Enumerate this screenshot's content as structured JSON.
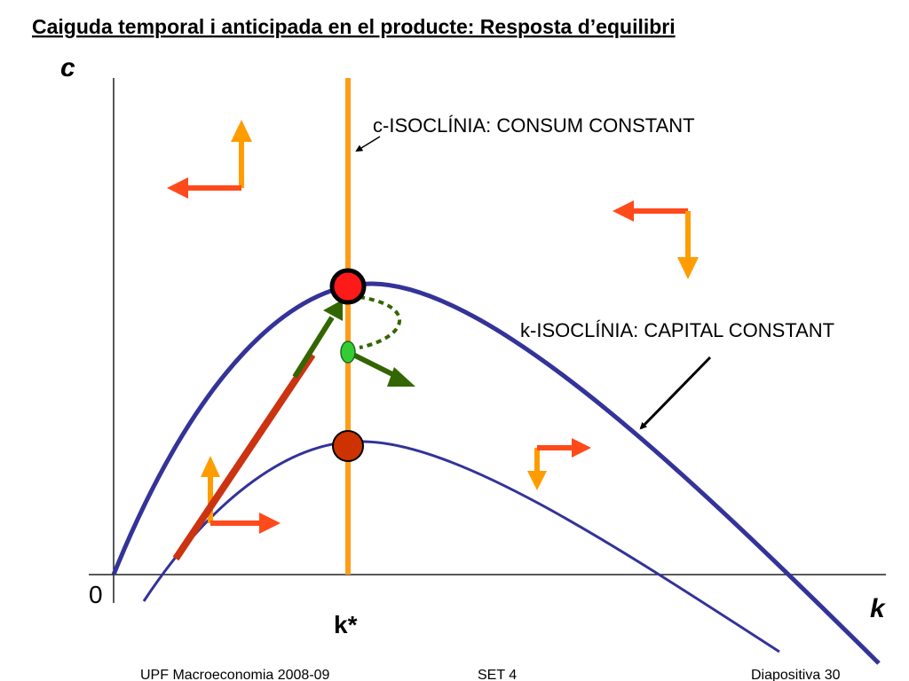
{
  "header": {
    "title": "Caiguda temporal i anticipada en el producte: Resposta d’equilibri"
  },
  "axes": {
    "y_label": "c",
    "x_label": "k",
    "origin": "0",
    "kstar": "k*"
  },
  "labels": {
    "c_isocline": "c-ISOCLÍNIA: CONSUM CONSTANT",
    "k_isocline": "k-ISOCLÍNIA: CAPITAL CONSTANT"
  },
  "footer": {
    "left": "UPF Macroeconomia 2008-09",
    "center": "SET 4",
    "right": "Diapositiva 30"
  }
}
